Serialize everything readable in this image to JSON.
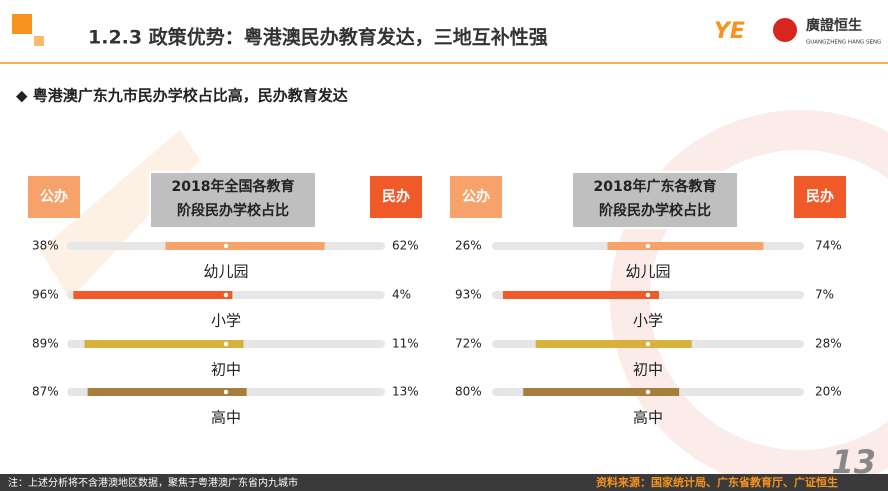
{
  "header": {
    "title": "1.2.3 政策优势：粤港澳民办教育发达，三地互补性强",
    "logo_text": "廣證恒生",
    "logo_subtext": "GUANGZHENG HANG SENG"
  },
  "subtitle": "◆ 粤港澳广东九市民办学校占比高，民办教育发达",
  "panels": [
    {
      "title_lines": [
        "2018年全国各教育",
        "阶段民办学校占比"
      ],
      "left_label": "公办",
      "right_label": "民办",
      "rows": [
        {
          "category": "幼儿园",
          "public": 38,
          "private": 62,
          "public_label": "38%",
          "private_label": "62%",
          "color": "#f7a26a"
        },
        {
          "category": "小学",
          "public": 96,
          "private": 4,
          "public_label": "96%",
          "private_label": "4%",
          "color": "#f05a28"
        },
        {
          "category": "初中",
          "public": 89,
          "private": 11,
          "public_label": "89%",
          "private_label": "11%",
          "color": "#d8b13c"
        },
        {
          "category": "高中",
          "public": 87,
          "private": 13,
          "public_label": "87%",
          "private_label": "13%",
          "color": "#a77f3c"
        }
      ]
    },
    {
      "title_lines": [
        "2018年广东各教育",
        "阶段民办学校占比"
      ],
      "left_label": "公办",
      "right_label": "民办",
      "rows": [
        {
          "category": "幼儿园",
          "public": 26,
          "private": 74,
          "public_label": "26%",
          "private_label": "74%",
          "color": "#f7a26a"
        },
        {
          "category": "小学",
          "public": 93,
          "private": 7,
          "public_label": "93%",
          "private_label": "7%",
          "color": "#f05a28"
        },
        {
          "category": "初中",
          "public": 72,
          "private": 28,
          "public_label": "72%",
          "private_label": "28%",
          "color": "#d8b13c"
        },
        {
          "category": "高中",
          "public": 80,
          "private": 20,
          "public_label": "80%",
          "private_label": "20%",
          "color": "#a77f3c"
        }
      ]
    }
  ],
  "footer": {
    "note": "注：上述分析将不含港澳地区数据，聚焦于粤港澳广东省内九城市",
    "source": "资料来源：国家统计局、广东省教育厅、广证恒生",
    "page": "13"
  }
}
